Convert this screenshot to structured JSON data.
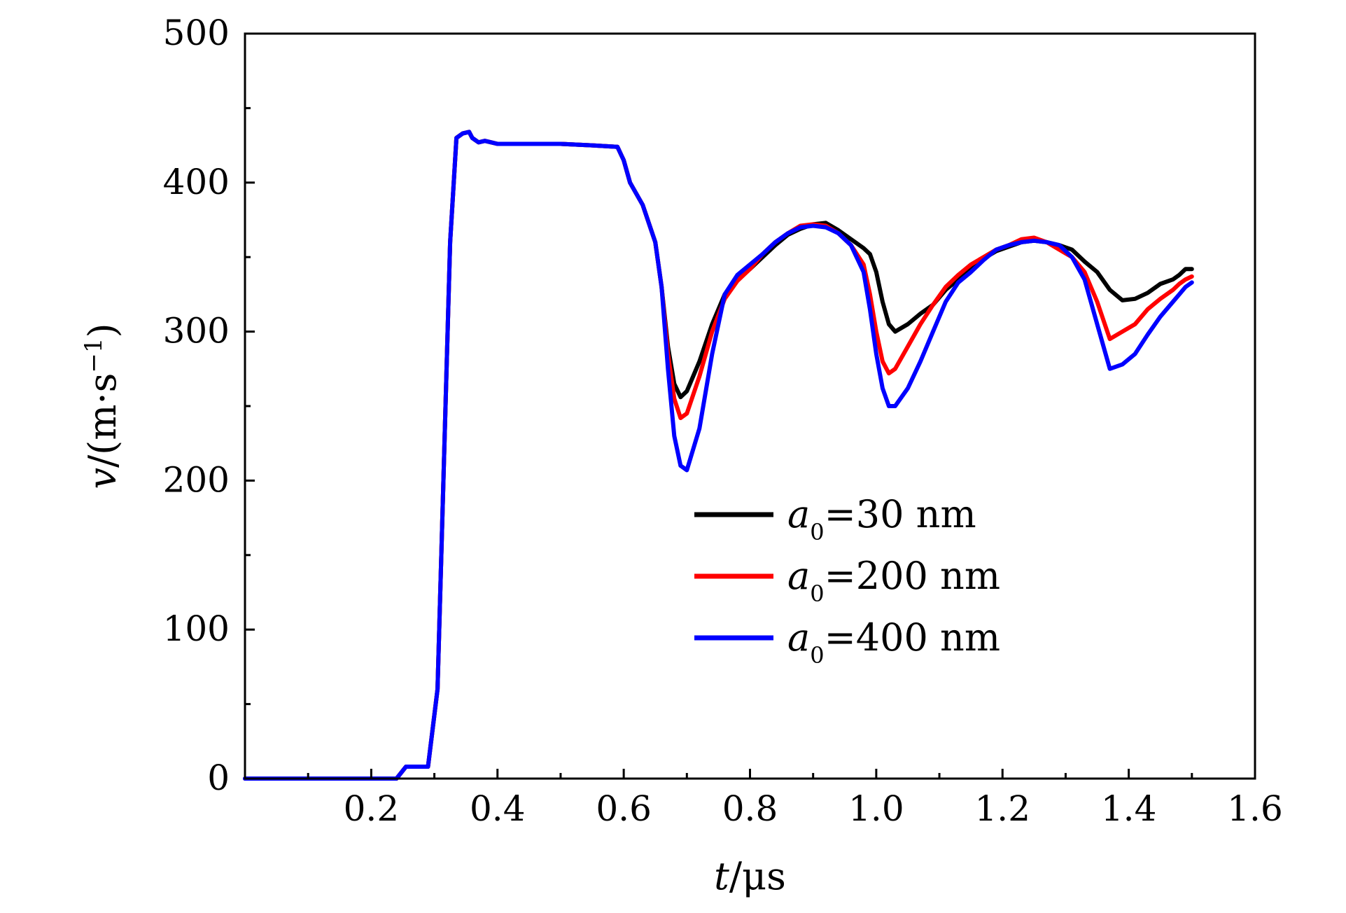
{
  "chart_data": {
    "type": "line",
    "title": "",
    "xlabel": "t/μs",
    "ylabel": "v/(m·s⁻¹)",
    "xlim": [
      0,
      1.6
    ],
    "ylim": [
      0,
      500
    ],
    "x_tick_labels": [
      "0.2",
      "0.4",
      "0.6",
      "0.8",
      "1.0",
      "1.2",
      "1.4",
      "1.6"
    ],
    "y_tick_labels": [
      "0",
      "100",
      "200",
      "300",
      "400",
      "500"
    ],
    "x_ticks": [
      0.2,
      0.4,
      0.6,
      0.8,
      1.0,
      1.2,
      1.4,
      1.6
    ],
    "y_ticks": [
      0,
      100,
      200,
      300,
      400,
      500
    ],
    "grid": false,
    "legend_position": "center-right",
    "series": [
      {
        "name": "a0=30 nm",
        "color": "#000000",
        "x": [
          0.0,
          0.1,
          0.2,
          0.24,
          0.255,
          0.27,
          0.29,
          0.305,
          0.315,
          0.325,
          0.335,
          0.345,
          0.355,
          0.36,
          0.37,
          0.38,
          0.39,
          0.4,
          0.45,
          0.5,
          0.55,
          0.59,
          0.6,
          0.61,
          0.63,
          0.65,
          0.66,
          0.67,
          0.68,
          0.69,
          0.7,
          0.72,
          0.74,
          0.76,
          0.78,
          0.8,
          0.82,
          0.84,
          0.86,
          0.88,
          0.9,
          0.92,
          0.94,
          0.96,
          0.98,
          0.99,
          1.0,
          1.01,
          1.02,
          1.03,
          1.05,
          1.07,
          1.09,
          1.11,
          1.13,
          1.15,
          1.17,
          1.19,
          1.21,
          1.23,
          1.25,
          1.27,
          1.29,
          1.31,
          1.33,
          1.35,
          1.37,
          1.39,
          1.41,
          1.43,
          1.45,
          1.47,
          1.48,
          1.49,
          1.5
        ],
        "values": [
          0,
          0,
          0,
          0,
          8,
          8,
          8,
          60,
          210,
          360,
          430,
          433,
          434,
          430,
          427,
          428,
          427,
          426,
          426,
          426,
          425,
          424,
          415,
          400,
          385,
          360,
          330,
          290,
          265,
          256,
          260,
          280,
          305,
          325,
          335,
          342,
          350,
          358,
          365,
          369,
          372,
          373,
          368,
          362,
          356,
          352,
          340,
          320,
          305,
          300,
          305,
          312,
          318,
          328,
          335,
          343,
          349,
          354,
          357,
          360,
          361,
          360,
          358,
          355,
          347,
          340,
          328,
          321,
          322,
          326,
          332,
          335,
          338,
          342,
          342
        ]
      },
      {
        "name": "a0=200 nm",
        "color": "#ff0000",
        "x": [
          0.0,
          0.1,
          0.2,
          0.24,
          0.255,
          0.27,
          0.29,
          0.305,
          0.315,
          0.325,
          0.335,
          0.345,
          0.355,
          0.36,
          0.37,
          0.38,
          0.39,
          0.4,
          0.45,
          0.5,
          0.55,
          0.59,
          0.6,
          0.61,
          0.63,
          0.65,
          0.66,
          0.67,
          0.68,
          0.69,
          0.7,
          0.72,
          0.74,
          0.76,
          0.78,
          0.8,
          0.82,
          0.84,
          0.86,
          0.88,
          0.9,
          0.92,
          0.94,
          0.96,
          0.98,
          0.99,
          1.0,
          1.01,
          1.02,
          1.03,
          1.05,
          1.07,
          1.09,
          1.11,
          1.13,
          1.15,
          1.17,
          1.19,
          1.21,
          1.23,
          1.25,
          1.27,
          1.29,
          1.31,
          1.33,
          1.35,
          1.37,
          1.39,
          1.41,
          1.43,
          1.45,
          1.47,
          1.48,
          1.49,
          1.5
        ],
        "values": [
          0,
          0,
          0,
          0,
          8,
          8,
          8,
          60,
          210,
          360,
          430,
          433,
          434,
          430,
          427,
          428,
          427,
          426,
          426,
          426,
          425,
          424,
          415,
          400,
          385,
          360,
          330,
          285,
          255,
          242,
          245,
          270,
          300,
          322,
          334,
          342,
          352,
          360,
          366,
          371,
          372,
          371,
          366,
          358,
          345,
          325,
          300,
          280,
          272,
          275,
          290,
          305,
          318,
          330,
          338,
          345,
          350,
          355,
          358,
          362,
          363,
          360,
          355,
          350,
          340,
          320,
          295,
          300,
          305,
          315,
          322,
          328,
          332,
          335,
          337
        ]
      },
      {
        "name": "a0=400 nm",
        "color": "#0000ff",
        "x": [
          0.0,
          0.1,
          0.2,
          0.24,
          0.255,
          0.27,
          0.29,
          0.305,
          0.315,
          0.325,
          0.335,
          0.345,
          0.355,
          0.36,
          0.37,
          0.38,
          0.39,
          0.4,
          0.45,
          0.5,
          0.55,
          0.59,
          0.6,
          0.61,
          0.63,
          0.65,
          0.66,
          0.67,
          0.68,
          0.69,
          0.7,
          0.72,
          0.74,
          0.76,
          0.78,
          0.8,
          0.82,
          0.84,
          0.86,
          0.88,
          0.9,
          0.92,
          0.94,
          0.96,
          0.98,
          0.99,
          1.0,
          1.01,
          1.02,
          1.03,
          1.05,
          1.07,
          1.09,
          1.11,
          1.13,
          1.15,
          1.17,
          1.19,
          1.21,
          1.23,
          1.25,
          1.27,
          1.29,
          1.31,
          1.33,
          1.35,
          1.37,
          1.39,
          1.41,
          1.43,
          1.45,
          1.47,
          1.48,
          1.49,
          1.5
        ],
        "values": [
          0,
          0,
          0,
          0,
          8,
          8,
          8,
          60,
          210,
          360,
          430,
          433,
          434,
          430,
          427,
          428,
          427,
          426,
          426,
          426,
          425,
          424,
          415,
          400,
          385,
          360,
          330,
          275,
          230,
          210,
          207,
          235,
          285,
          325,
          338,
          345,
          352,
          360,
          366,
          370,
          371,
          370,
          366,
          358,
          340,
          315,
          285,
          262,
          250,
          250,
          262,
          280,
          300,
          320,
          333,
          340,
          348,
          355,
          358,
          360,
          361,
          360,
          358,
          350,
          335,
          305,
          275,
          278,
          285,
          298,
          310,
          320,
          325,
          330,
          333
        ]
      }
    ]
  },
  "legend": {
    "items": [
      {
        "symbol": "a",
        "subscript": "0",
        "text": "=30 nm"
      },
      {
        "symbol": "a",
        "subscript": "0",
        "text": "=200 nm"
      },
      {
        "symbol": "a",
        "subscript": "0",
        "text": "=400 nm"
      }
    ]
  },
  "axis_titles": {
    "x_var": "t",
    "x_unit": "/μs",
    "y_var": "v",
    "y_unit_pre": "/(m·s",
    "y_unit_sup": "−1",
    "y_unit_post": ")"
  }
}
